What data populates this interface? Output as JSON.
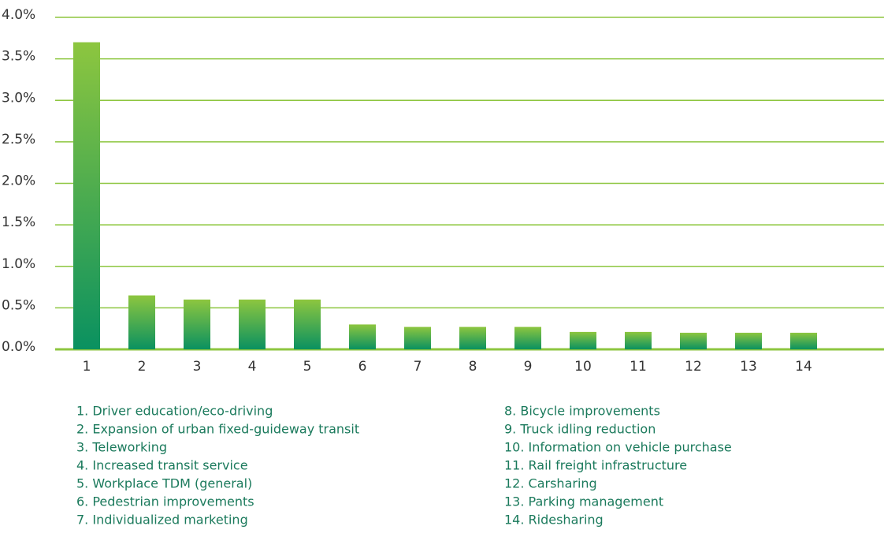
{
  "chart_data": {
    "type": "bar",
    "categories": [
      "1",
      "2",
      "3",
      "4",
      "5",
      "6",
      "7",
      "8",
      "9",
      "10",
      "11",
      "12",
      "13",
      "14"
    ],
    "values": [
      3.7,
      0.65,
      0.6,
      0.6,
      0.6,
      0.3,
      0.27,
      0.27,
      0.27,
      0.21,
      0.21,
      0.2,
      0.2,
      0.2
    ],
    "gradient": [
      "#8dc63f",
      "#0a9160"
    ],
    "grid_color": "#8dc63f",
    "ylim": [
      0,
      4
    ],
    "yticks": [
      {
        "value": 0,
        "label": "0.0%"
      },
      {
        "value": 0.5,
        "label": "0.5%"
      },
      {
        "value": 1,
        "label": "1.0%"
      },
      {
        "value": 1.5,
        "label": "1.5%"
      },
      {
        "value": 2,
        "label": "2.0%"
      },
      {
        "value": 2.5,
        "label": "2.5%"
      },
      {
        "value": 3,
        "label": "3.0%"
      },
      {
        "value": 3.5,
        "label": "3.5%"
      },
      {
        "value": 4,
        "label": "4.0%"
      }
    ],
    "grid": true,
    "legend_items": [
      "1. Driver education/eco-driving",
      "2. Expansion of urban fixed-guideway transit",
      "3. Teleworking",
      "4. Increased transit service",
      "5. Workplace TDM (general)",
      "6. Pedestrian improvements",
      "7. Individualized marketing",
      "8. Bicycle improvements",
      "9. Truck idling reduction",
      "10. Information on vehicle purchase",
      "11. Rail freight infrastructure",
      "12. Carsharing",
      "13. Parking management",
      "14. Ridesharing"
    ]
  }
}
